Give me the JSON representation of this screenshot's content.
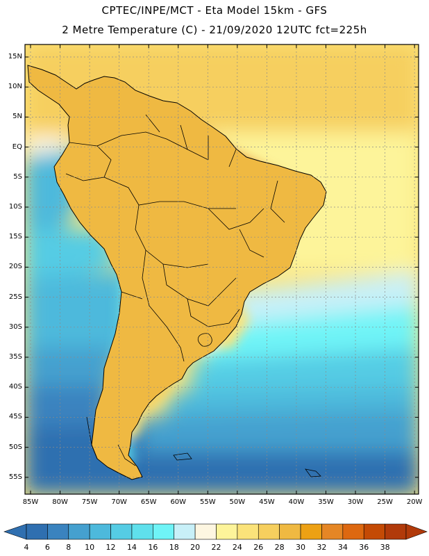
{
  "header": {
    "line1": "CPTEC/INPE/MCT -  Eta Model 15km - GFS",
    "line2": "2 Metre Temperature (C) - 21/09/2020 12UTC fct=225h"
  },
  "axes": {
    "lat_labels": [
      "15N",
      "10N",
      "5N",
      "EQ",
      "5S",
      "10S",
      "15S",
      "20S",
      "25S",
      "30S",
      "35S",
      "40S",
      "45S",
      "50S",
      "55S"
    ],
    "lon_labels": [
      "85W",
      "80W",
      "75W",
      "70W",
      "65W",
      "60W",
      "55W",
      "50W",
      "45W",
      "40W",
      "35W",
      "30W",
      "25W",
      "20W"
    ]
  },
  "colorbar": {
    "labels": [
      "4",
      "6",
      "8",
      "10",
      "12",
      "14",
      "16",
      "18",
      "20",
      "22",
      "24",
      "26",
      "28",
      "30",
      "32",
      "34",
      "36",
      "38"
    ],
    "colors": [
      "#2f6fb0",
      "#3a83bf",
      "#45a0cf",
      "#4db9dc",
      "#55cce4",
      "#5fe0ec",
      "#6ff4f7",
      "#c8f0f8",
      "#fdf6e1",
      "#fdf49a",
      "#fbe37a",
      "#f6cf5e",
      "#efb942",
      "#eda114",
      "#e58625",
      "#dd6810",
      "#c44a05",
      "#b13a0a",
      "#b13a0a"
    ]
  },
  "field": {
    "variable": "2 Metre Temperature",
    "unit": "C",
    "region_labels": []
  }
}
